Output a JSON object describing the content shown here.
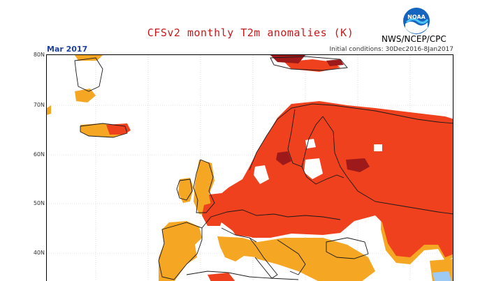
{
  "header": {
    "title": "CFSv2 monthly T2m anomalies (K)",
    "agency": "NWS/NCEP/CPC",
    "logo_text": "NOAA",
    "period": "Mar 2017",
    "initial_conditions": "Initial conditions: 30Dec2016-8Jan2017"
  },
  "map": {
    "latitude_labels": [
      "80N",
      "70N",
      "60N",
      "50N",
      "40N"
    ],
    "colors": {
      "strong_warm": "#9e1a1a",
      "warm": "#f0411e",
      "mild_warm": "#f5a623",
      "cool": "#9ccaf5",
      "border": "#1a1a1a",
      "grid": "#bdbdbd"
    }
  }
}
